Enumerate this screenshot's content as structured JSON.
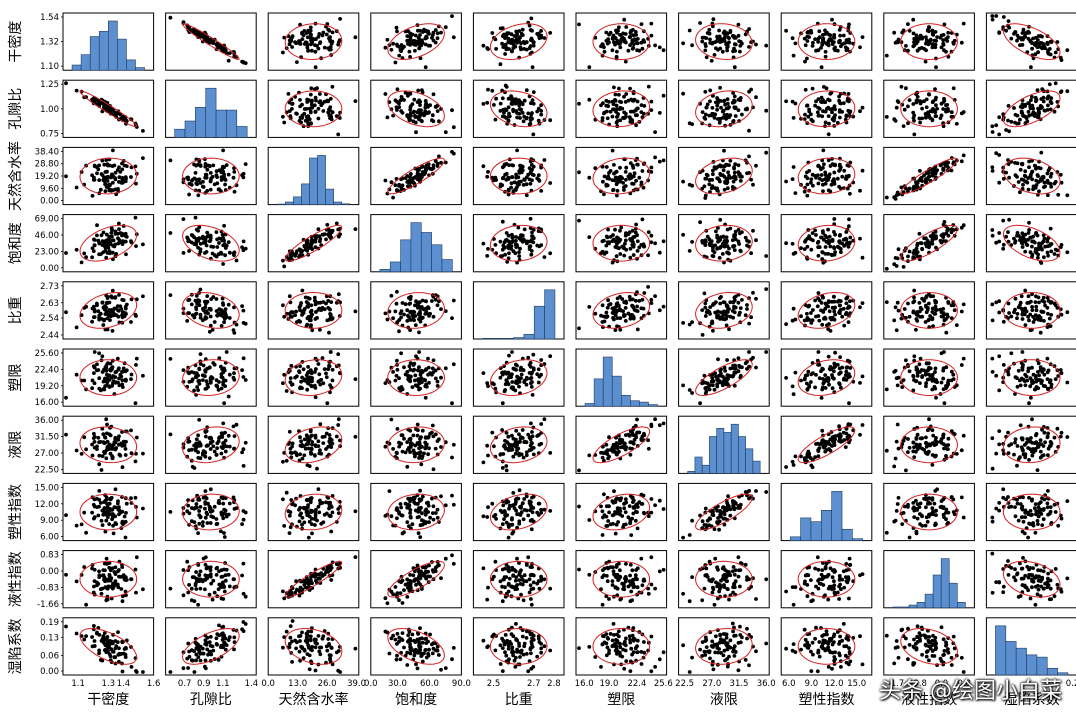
{
  "watermark": "头条 @绘图小白菜",
  "colors": {
    "histogram_fill": "#5b8fcf",
    "histogram_stroke": "#1f3a5f",
    "ellipse": "#d62020",
    "point": "#000000"
  },
  "chart_data": {
    "type": "scatter",
    "layout": "scatterplot-matrix",
    "diagonal": "histogram",
    "off_diagonal": "scatter with 95% confidence ellipse",
    "grid": false,
    "variables": [
      {
        "name": "干密度",
        "range": [
          1.0,
          1.6
        ],
        "ticks": [
          1.1,
          1.2,
          1.3,
          1.4,
          1.5
        ],
        "tick_labels": [
          "1.1",
          "1.3",
          "1.4",
          "1.6"
        ],
        "tick_values": [
          1.1,
          1.3,
          1.4,
          1.6
        ],
        "ytick_labels": [
          "1.54",
          "1.32",
          "1.10"
        ],
        "ytick_values": [
          1.54,
          1.32,
          1.1
        ],
        "hist": [
          2,
          6,
          13,
          15,
          19,
          12,
          4,
          1
        ]
      },
      {
        "name": "孔隙比",
        "range": [
          0.5,
          1.45
        ],
        "tick_labels": [
          "0.7",
          "0.9",
          "1.1",
          "1.4"
        ],
        "tick_values": [
          0.7,
          0.9,
          1.1,
          1.4
        ],
        "ytick_labels": [
          "1.25",
          "1.00",
          "0.75"
        ],
        "ytick_values": [
          1.25,
          1.0,
          0.75
        ],
        "hist": [
          3,
          6,
          11,
          18,
          10,
          10,
          4
        ]
      },
      {
        "name": "天然含水率",
        "range": [
          0,
          40
        ],
        "tick_labels": [
          "0.0",
          "13.0",
          "26.0",
          "39.0"
        ],
        "tick_values": [
          0,
          13,
          26,
          39
        ],
        "ytick_labels": [
          "38.40",
          "28.80",
          "19.20",
          "9.60",
          "0.00"
        ],
        "ytick_values": [
          38.4,
          28.8,
          19.2,
          9.6,
          0
        ],
        "hist": [
          0.2,
          1,
          3,
          8,
          18,
          19,
          6,
          1,
          0.3
        ]
      },
      {
        "name": "饱和度",
        "range": [
          5,
          90
        ],
        "tick_labels": [
          "0.0",
          "30.0",
          "60.0",
          "90.0"
        ],
        "tick_values": [
          0,
          30,
          60,
          90
        ],
        "ytick_labels": [
          "69.00",
          "46.00",
          "23.00",
          "0.00"
        ],
        "ytick_values": [
          69,
          46,
          23,
          0
        ],
        "hist": [
          1,
          4,
          13,
          20,
          16,
          11,
          5
        ]
      },
      {
        "name": "比重",
        "range": [
          2.4,
          2.85
        ],
        "tick_labels": [
          "2.5",
          "2.7",
          "2.8"
        ],
        "tick_values": [
          2.5,
          2.7,
          2.8
        ],
        "ytick_labels": [
          "2.73",
          "2.63",
          "2.54",
          "2.44"
        ],
        "ytick_values": [
          2.73,
          2.63,
          2.54,
          2.44
        ],
        "hist": [
          0.3,
          0.3,
          0.3,
          0.6,
          2,
          14,
          21
        ]
      },
      {
        "name": "塑限",
        "range": [
          15,
          26
        ],
        "tick_labels": [
          "16.0",
          "19.0",
          "22.4",
          "25.6"
        ],
        "tick_values": [
          16,
          19,
          22.4,
          25.6
        ],
        "ytick_labels": [
          "25.60",
          "22.40",
          "19.20",
          "16.00"
        ],
        "ytick_values": [
          25.6,
          22.4,
          19.2,
          16
        ],
        "hist": [
          1,
          10,
          18,
          11,
          4,
          2,
          1.5,
          0.6
        ]
      },
      {
        "name": "液限",
        "range": [
          21.5,
          36.5
        ],
        "tick_labels": [
          "22.5",
          "27.0",
          "31.5",
          "36.0"
        ],
        "tick_values": [
          22.5,
          27,
          31.5,
          36
        ],
        "ytick_labels": [
          "36.00",
          "31.50",
          "27.00",
          "22.50"
        ],
        "ytick_values": [
          36,
          31.5,
          27,
          22.5
        ],
        "hist": [
          0.5,
          4,
          2,
          9,
          11,
          10,
          12,
          9,
          6,
          3
        ]
      },
      {
        "name": "塑性指数",
        "range": [
          5,
          17
        ],
        "tick_labels": [
          "6.0",
          "9.0",
          "12.0",
          "15.0"
        ],
        "tick_values": [
          6,
          9,
          12,
          15
        ],
        "ytick_labels": [
          "15.00",
          "12.00",
          "9.00",
          "6.00"
        ],
        "ytick_values": [
          15,
          12,
          9,
          6
        ],
        "hist": [
          1,
          6,
          5,
          8,
          13,
          3,
          0.5
        ]
      },
      {
        "name": "液性指数",
        "range": [
          -2.1,
          1.2
        ],
        "tick_labels": [
          "-1.7",
          "-0.8",
          "0.0",
          "0.8"
        ],
        "tick_values": [
          -1.66,
          -0.83,
          0,
          0.83
        ],
        "ytick_labels": [
          "0.83",
          "0.00",
          "-0.83",
          "-1.66"
        ],
        "ytick_values": [
          0.83,
          0,
          -0.83,
          -1.66
        ],
        "hist": [
          0.3,
          0.3,
          1,
          2,
          5,
          12,
          18,
          9,
          2
        ]
      },
      {
        "name": "湿陷系数",
        "range": [
          0,
          0.2
        ],
        "tick_labels": [
          "0.2"
        ],
        "tick_values": [
          0.19
        ],
        "ytick_labels": [
          "0.19",
          "0.13",
          "0.06",
          "0.00"
        ],
        "ytick_values": [
          0.19,
          0.13,
          0.06,
          0
        ],
        "hist": [
          22,
          15,
          12,
          9,
          8,
          3,
          1
        ]
      }
    ],
    "correlation": [
      [
        1.0,
        -0.97,
        0.05,
        0.45,
        0.3,
        0.0,
        -0.1,
        0.0,
        0.0,
        -0.6
      ],
      [
        -0.97,
        1.0,
        0.0,
        -0.4,
        -0.25,
        0.1,
        0.2,
        0.05,
        0.0,
        0.6
      ],
      [
        0.05,
        0.0,
        1.0,
        0.88,
        0.0,
        0.15,
        0.3,
        0.1,
        0.92,
        -0.3
      ],
      [
        0.45,
        -0.4,
        0.88,
        1.0,
        0.1,
        0.0,
        0.1,
        0.1,
        0.8,
        -0.5
      ],
      [
        0.3,
        -0.25,
        0.0,
        0.1,
        1.0,
        0.25,
        0.2,
        0.3,
        0.0,
        0.0
      ],
      [
        0.0,
        0.1,
        0.15,
        0.0,
        0.25,
        1.0,
        0.75,
        0.25,
        0.0,
        0.0
      ],
      [
        -0.1,
        0.2,
        0.3,
        0.1,
        0.2,
        0.75,
        1.0,
        0.8,
        0.0,
        0.1
      ],
      [
        0.0,
        0.05,
        0.1,
        0.1,
        0.3,
        0.25,
        0.8,
        1.0,
        0.0,
        0.0
      ],
      [
        0.0,
        0.0,
        0.92,
        0.8,
        0.0,
        0.0,
        0.0,
        0.0,
        1.0,
        -0.3
      ],
      [
        -0.6,
        0.6,
        -0.3,
        -0.5,
        0.0,
        0.0,
        0.1,
        0.0,
        -0.3,
        1.0
      ]
    ],
    "sample_size": 90
  }
}
